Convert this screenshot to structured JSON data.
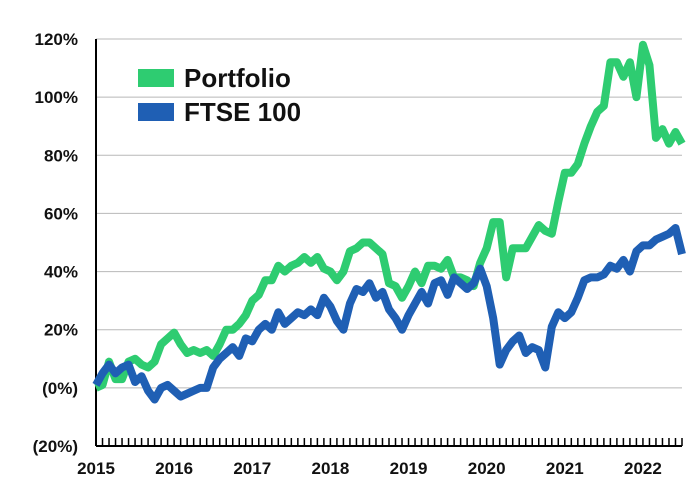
{
  "chart_data": {
    "type": "line",
    "title": "",
    "xlabel": "",
    "ylabel": "",
    "x_ticks": [
      "2015",
      "2016",
      "2017",
      "2018",
      "2019",
      "2020",
      "2021",
      "2022"
    ],
    "y_ticks": [
      {
        "value": -20,
        "label": "(20%)"
      },
      {
        "value": 0,
        "label": "(0%)"
      },
      {
        "value": 20,
        "label": "20%"
      },
      {
        "value": 40,
        "label": "40%"
      },
      {
        "value": 60,
        "label": "60%"
      },
      {
        "value": 80,
        "label": "80%"
      },
      {
        "value": 100,
        "label": "100%"
      },
      {
        "value": 120,
        "label": "120%"
      }
    ],
    "xlim": [
      "2015-01",
      "2022-07"
    ],
    "ylim": [
      -20,
      120
    ],
    "grid": "horizontal",
    "legend_position": "top-left",
    "x": [
      "2015-01",
      "2015-02",
      "2015-03",
      "2015-04",
      "2015-05",
      "2015-06",
      "2015-07",
      "2015-08",
      "2015-09",
      "2015-10",
      "2015-11",
      "2015-12",
      "2016-01",
      "2016-02",
      "2016-03",
      "2016-04",
      "2016-05",
      "2016-06",
      "2016-07",
      "2016-08",
      "2016-09",
      "2016-10",
      "2016-11",
      "2016-12",
      "2017-01",
      "2017-02",
      "2017-03",
      "2017-04",
      "2017-05",
      "2017-06",
      "2017-07",
      "2017-08",
      "2017-09",
      "2017-10",
      "2017-11",
      "2017-12",
      "2018-01",
      "2018-02",
      "2018-03",
      "2018-04",
      "2018-05",
      "2018-06",
      "2018-07",
      "2018-08",
      "2018-09",
      "2018-10",
      "2018-11",
      "2018-12",
      "2019-01",
      "2019-02",
      "2019-03",
      "2019-04",
      "2019-05",
      "2019-06",
      "2019-07",
      "2019-08",
      "2019-09",
      "2019-10",
      "2019-11",
      "2019-12",
      "2020-01",
      "2020-02",
      "2020-03",
      "2020-04",
      "2020-05",
      "2020-06",
      "2020-07",
      "2020-08",
      "2020-09",
      "2020-10",
      "2020-11",
      "2020-12",
      "2021-01",
      "2021-02",
      "2021-03",
      "2021-04",
      "2021-05",
      "2021-06",
      "2021-07",
      "2021-08",
      "2021-09",
      "2021-10",
      "2021-11",
      "2021-12",
      "2022-01",
      "2022-02",
      "2022-03",
      "2022-04",
      "2022-05",
      "2022-06",
      "2022-07"
    ],
    "series": [
      {
        "name": "Portfolio",
        "color": "#2ecc71",
        "values": [
          0,
          1,
          9,
          3,
          3,
          9,
          10,
          8,
          7,
          9,
          15,
          17,
          19,
          15,
          12,
          13,
          12,
          13,
          11,
          15,
          20,
          20,
          22,
          25,
          30,
          32,
          37,
          37,
          42,
          40,
          42,
          43,
          45,
          43,
          45,
          41,
          40,
          37,
          40,
          47,
          48,
          50,
          50,
          48,
          46,
          36,
          35,
          31,
          35,
          40,
          36,
          42,
          42,
          41,
          44,
          38,
          38,
          37,
          35,
          43,
          48,
          57,
          57,
          38,
          48,
          48,
          48,
          52,
          56,
          54,
          53,
          64,
          74,
          74,
          77,
          84,
          90,
          95,
          97,
          112,
          112,
          107,
          112,
          100,
          118,
          111,
          86,
          89,
          84,
          88,
          84
        ]
      },
      {
        "name": "FTSE 100",
        "color": "#1f5fb4",
        "values": [
          1,
          5,
          8,
          5,
          7,
          8,
          2,
          4,
          -1,
          -4,
          0,
          1,
          -1,
          -3,
          -2,
          -1,
          0,
          0,
          7,
          10,
          12,
          14,
          11,
          17,
          16,
          20,
          22,
          20,
          26,
          22,
          24,
          26,
          25,
          27,
          25,
          31,
          28,
          23,
          20,
          29,
          34,
          33,
          36,
          31,
          33,
          27,
          24,
          20,
          25,
          29,
          33,
          29,
          36,
          37,
          32,
          38,
          36,
          34,
          36,
          41,
          35,
          24,
          8,
          13,
          16,
          18,
          12,
          14,
          13,
          7,
          21,
          26,
          24,
          26,
          31,
          37,
          38,
          38,
          39,
          42,
          41,
          44,
          40,
          47,
          49,
          49,
          51,
          52,
          53,
          55,
          46
        ]
      }
    ]
  }
}
